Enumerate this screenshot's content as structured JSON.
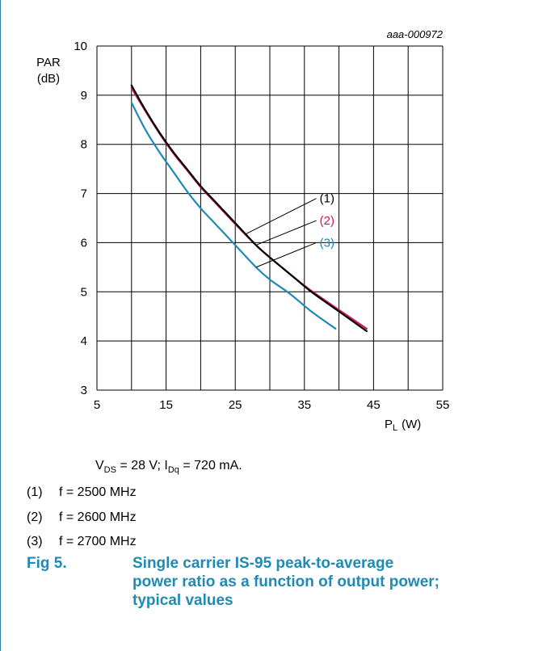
{
  "chart_data": {
    "type": "line",
    "code": "aaa-000972",
    "ylabel_line1": "PAR",
    "ylabel_line2": "(dB)",
    "xlabel_main": "P",
    "xlabel_sub": "L",
    "xlabel_unit": "(W)",
    "xlim": [
      5,
      55
    ],
    "ylim": [
      3,
      10
    ],
    "x_ticks": [
      5,
      15,
      25,
      35,
      45,
      55
    ],
    "y_ticks": [
      3,
      4,
      5,
      6,
      7,
      8,
      9,
      10
    ],
    "x_grid_step": 5,
    "series": [
      {
        "name": "(1)",
        "color": "#000000",
        "x": [
          10,
          12,
          14,
          16,
          18,
          20,
          22,
          25,
          28,
          30,
          33,
          36,
          40,
          44
        ],
        "y": [
          9.2,
          8.7,
          8.25,
          7.85,
          7.5,
          7.15,
          6.85,
          6.4,
          5.95,
          5.7,
          5.35,
          5.0,
          4.6,
          4.2
        ]
      },
      {
        "name": "(2)",
        "color": "#d4145a",
        "x": [
          10,
          12,
          14,
          16,
          18,
          20,
          22,
          25,
          28,
          30,
          33,
          36,
          40,
          44
        ],
        "y": [
          9.15,
          8.68,
          8.23,
          7.83,
          7.48,
          7.13,
          6.83,
          6.38,
          5.95,
          5.7,
          5.35,
          5.02,
          4.63,
          4.25
        ]
      },
      {
        "name": "(3)",
        "color": "#1f8ab4",
        "x": [
          10,
          12,
          14,
          16,
          18,
          20,
          22,
          25,
          28,
          30,
          33,
          36,
          39.5
        ],
        "y": [
          8.85,
          8.3,
          7.85,
          7.45,
          7.05,
          6.7,
          6.4,
          5.95,
          5.5,
          5.25,
          4.95,
          4.6,
          4.25
        ]
      }
    ]
  },
  "conditions": {
    "v_main": "V",
    "v_sub": "DS",
    "v_rest": " = 28 V; I",
    "i_sub": "Dq",
    "i_rest": " = 720 mA."
  },
  "notes": [
    {
      "num": "(1)",
      "text": "f = 2500 MHz"
    },
    {
      "num": "(2)",
      "text": "f = 2600 MHz"
    },
    {
      "num": "(3)",
      "text": "f = 2700 MHz"
    }
  ],
  "caption": {
    "fig": "Fig 5.",
    "text": "Single carrier IS-95 peak-to-average power ratio as a function of output power; typical values"
  }
}
